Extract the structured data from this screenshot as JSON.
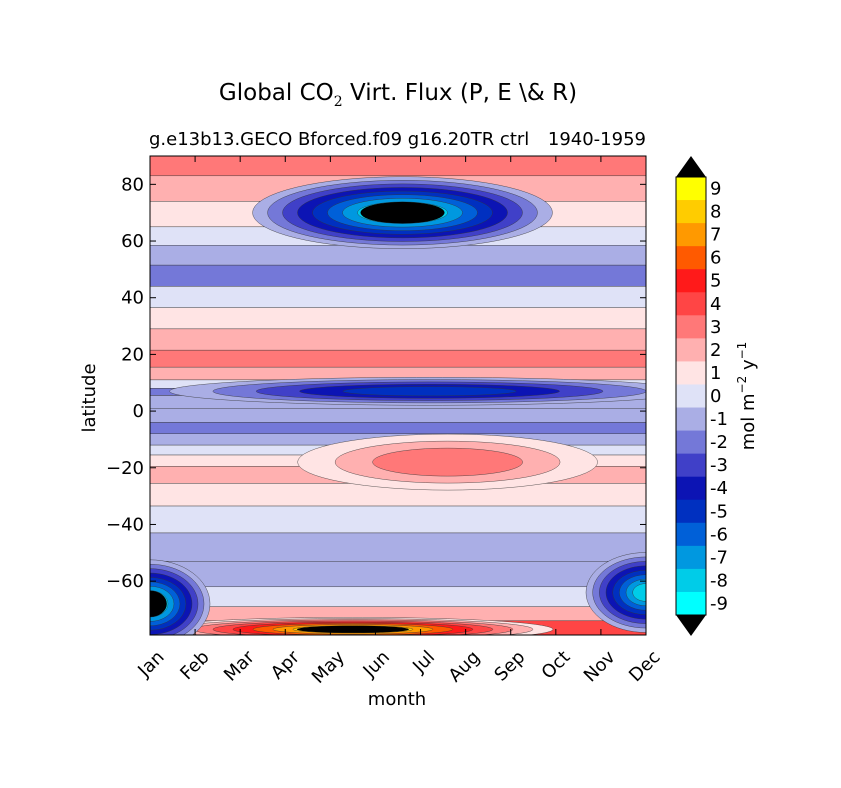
{
  "chart_data": {
    "type": "heatmap",
    "title_prefix": "Global CO",
    "title_subscript": "2",
    "title_suffix": " Virt. Flux (P, E \\& R)",
    "subtitle_left": "g.e13b13.GECO Bforced.f09 g16.20TR ctrl",
    "subtitle_right": "1940-1959",
    "xlabel": "month",
    "ylabel": "latitude",
    "x_ticks": [
      "Jan",
      "Feb",
      "Mar",
      "Apr",
      "May",
      "Jun",
      "Jul",
      "Aug",
      "Sep",
      "Oct",
      "Nov",
      "Dec"
    ],
    "y_ticks": [
      "80",
      "60",
      "40",
      "20",
      "0",
      "−20",
      "−40",
      "−60"
    ],
    "y_tick_values": [
      80,
      60,
      40,
      20,
      0,
      -20,
      -40,
      -60
    ],
    "ylim": [
      -79,
      90
    ],
    "colorbar": {
      "label_base": "mol m",
      "label_exp1": "−2",
      "label_mid": " y",
      "label_exp2": "−1",
      "levels": [
        "9",
        "8",
        "7",
        "6",
        "5",
        "4",
        "3",
        "2",
        "1",
        "0",
        "-1",
        "-2",
        "-3",
        "-4",
        "-5",
        "-6",
        "-7",
        "-8",
        "-9"
      ],
      "colors": [
        "#ffff00",
        "#ffcc00",
        "#ff9900",
        "#ff5a00",
        "#ff1a1a",
        "#ff4545",
        "#ff7878",
        "#ffb0b0",
        "#ffe4e4",
        "#dfe2f7",
        "#aaaee5",
        "#7478d8",
        "#4040c8",
        "#0c14b4",
        "#0030c0",
        "#0060d8",
        "#0098e0",
        "#00cce8",
        "#00ffff"
      ],
      "over_color": "#000000",
      "under_color": "#000000"
    },
    "latitude_profile": [
      {
        "lat": 86,
        "value": 3
      },
      {
        "lat": 80,
        "value": 2
      },
      {
        "lat": 68,
        "value": 1
      },
      {
        "lat": 62,
        "value": 0
      },
      {
        "lat": 55,
        "value": -1
      },
      {
        "lat": 48,
        "value": -2
      },
      {
        "lat": 40,
        "value": 0
      },
      {
        "lat": 33,
        "value": 1
      },
      {
        "lat": 25,
        "value": 2
      },
      {
        "lat": 18,
        "value": 3
      },
      {
        "lat": 13,
        "value": 2
      },
      {
        "lat": 9,
        "value": 0
      },
      {
        "lat": 7,
        "value": -2
      },
      {
        "lat": 4,
        "value": -1
      },
      {
        "lat": -2,
        "value": -1
      },
      {
        "lat": -6,
        "value": -2
      },
      {
        "lat": -10,
        "value": -1
      },
      {
        "lat": -14,
        "value": 0
      },
      {
        "lat": -17,
        "value": 1
      },
      {
        "lat": -22,
        "value": 2
      },
      {
        "lat": -29,
        "value": 1
      },
      {
        "lat": -38,
        "value": 0
      },
      {
        "lat": -48,
        "value": -1
      },
      {
        "lat": -58,
        "value": -1
      },
      {
        "lat": -66,
        "value": 0
      },
      {
        "lat": -72,
        "value": 2
      },
      {
        "lat": -76,
        "value": 4
      }
    ],
    "features": [
      {
        "name": "arctic-summer-low",
        "month": 6.6,
        "lat": 70,
        "value": -9
      },
      {
        "name": "tropical-rain-band",
        "month": 7.2,
        "lat": 7,
        "value": -5
      },
      {
        "name": "south-subtropical-high",
        "month": 7.6,
        "lat": -18,
        "value": 3
      },
      {
        "name": "antarctic-coast-high",
        "month": 5.5,
        "lat": -77,
        "value": 9
      },
      {
        "name": "southern-ocean-low-jan",
        "month": 1.0,
        "lat": -68,
        "value": -9
      },
      {
        "name": "southern-ocean-low-dec",
        "month": 12.0,
        "lat": -64,
        "value": -8
      }
    ]
  }
}
